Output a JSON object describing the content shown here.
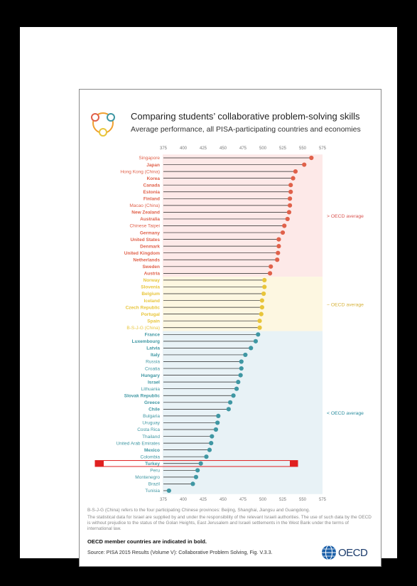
{
  "header": {
    "title": "Comparing students’ collaborative problem-solving skills",
    "subtitle": "Average performance, all PISA-participating countries and economies"
  },
  "bands": [
    {
      "label": "> OECD average",
      "color": "#fde9e8",
      "text_color": "#d9534f"
    },
    {
      "label": "~ OECD average",
      "color": "#fdf7e1",
      "text_color": "#d6b23a"
    },
    {
      "label": "< OECD average",
      "color": "#e8f2f6",
      "text_color": "#2a8c9e"
    }
  ],
  "colors": {
    "above": "#e0614a",
    "similar": "#e8c53a",
    "below": "#3f97a3",
    "highlight": "#e02020"
  },
  "chart_data": {
    "type": "lollipop",
    "xlim": [
      375,
      575
    ],
    "x_ticks": [
      "375",
      "400",
      "425",
      "450",
      "475",
      "500",
      "525",
      "550",
      "575"
    ],
    "grid": false,
    "highlight": "Turkey",
    "series": [
      {
        "country": "Singapore",
        "value": 561,
        "group": "above",
        "bold": false
      },
      {
        "country": "Japan",
        "value": 552,
        "group": "above",
        "bold": true
      },
      {
        "country": "Hong Kong (China)",
        "value": 541,
        "group": "above",
        "bold": false
      },
      {
        "country": "Korea",
        "value": 538,
        "group": "above",
        "bold": true
      },
      {
        "country": "Canada",
        "value": 535,
        "group": "above",
        "bold": true
      },
      {
        "country": "Estonia",
        "value": 535,
        "group": "above",
        "bold": true
      },
      {
        "country": "Finland",
        "value": 534,
        "group": "above",
        "bold": true
      },
      {
        "country": "Macao (China)",
        "value": 534,
        "group": "above",
        "bold": false
      },
      {
        "country": "New Zealand",
        "value": 533,
        "group": "above",
        "bold": true
      },
      {
        "country": "Australia",
        "value": 531,
        "group": "above",
        "bold": true
      },
      {
        "country": "Chinese Taipei",
        "value": 527,
        "group": "above",
        "bold": false
      },
      {
        "country": "Germany",
        "value": 525,
        "group": "above",
        "bold": true
      },
      {
        "country": "United States",
        "value": 520,
        "group": "above",
        "bold": true
      },
      {
        "country": "Denmark",
        "value": 520,
        "group": "above",
        "bold": true
      },
      {
        "country": "United Kingdom",
        "value": 519,
        "group": "above",
        "bold": true
      },
      {
        "country": "Netherlands",
        "value": 518,
        "group": "above",
        "bold": true
      },
      {
        "country": "Sweden",
        "value": 510,
        "group": "above",
        "bold": true
      },
      {
        "country": "Austria",
        "value": 509,
        "group": "above",
        "bold": true
      },
      {
        "country": "Norway",
        "value": 502,
        "group": "similar",
        "bold": true
      },
      {
        "country": "Slovenia",
        "value": 502,
        "group": "similar",
        "bold": true
      },
      {
        "country": "Belgium",
        "value": 501,
        "group": "similar",
        "bold": true
      },
      {
        "country": "Iceland",
        "value": 499,
        "group": "similar",
        "bold": true
      },
      {
        "country": "Czech Republic",
        "value": 499,
        "group": "similar",
        "bold": true
      },
      {
        "country": "Portugal",
        "value": 498,
        "group": "similar",
        "bold": true
      },
      {
        "country": "Spain",
        "value": 496,
        "group": "similar",
        "bold": true
      },
      {
        "country": "B-S-J-G (China)",
        "value": 496,
        "group": "similar",
        "bold": false
      },
      {
        "country": "France",
        "value": 494,
        "group": "below",
        "bold": true
      },
      {
        "country": "Luxembourg",
        "value": 491,
        "group": "below",
        "bold": true
      },
      {
        "country": "Latvia",
        "value": 485,
        "group": "below",
        "bold": true
      },
      {
        "country": "Italy",
        "value": 478,
        "group": "below",
        "bold": true
      },
      {
        "country": "Russia",
        "value": 473,
        "group": "below",
        "bold": false
      },
      {
        "country": "Croatia",
        "value": 473,
        "group": "below",
        "bold": false
      },
      {
        "country": "Hungary",
        "value": 472,
        "group": "below",
        "bold": true
      },
      {
        "country": "Israel",
        "value": 469,
        "group": "below",
        "bold": true
      },
      {
        "country": "Lithuania",
        "value": 467,
        "group": "below",
        "bold": false
      },
      {
        "country": "Slovak Republic",
        "value": 463,
        "group": "below",
        "bold": true
      },
      {
        "country": "Greece",
        "value": 459,
        "group": "below",
        "bold": true
      },
      {
        "country": "Chile",
        "value": 457,
        "group": "below",
        "bold": true
      },
      {
        "country": "Bulgaria",
        "value": 444,
        "group": "below",
        "bold": false
      },
      {
        "country": "Uruguay",
        "value": 443,
        "group": "below",
        "bold": false
      },
      {
        "country": "Costa Rica",
        "value": 441,
        "group": "below",
        "bold": false
      },
      {
        "country": "Thailand",
        "value": 436,
        "group": "below",
        "bold": false
      },
      {
        "country": "United Arab Emirates",
        "value": 435,
        "group": "below",
        "bold": false
      },
      {
        "country": "Mexico",
        "value": 433,
        "group": "below",
        "bold": true
      },
      {
        "country": "Colombia",
        "value": 429,
        "group": "below",
        "bold": false
      },
      {
        "country": "Turkey",
        "value": 422,
        "group": "below",
        "bold": true
      },
      {
        "country": "Peru",
        "value": 418,
        "group": "below",
        "bold": false
      },
      {
        "country": "Montenegro",
        "value": 416,
        "group": "below",
        "bold": false
      },
      {
        "country": "Brazil",
        "value": 412,
        "group": "below",
        "bold": false
      },
      {
        "country": "Tunisia",
        "value": 382,
        "group": "below",
        "bold": false
      }
    ]
  },
  "footer": {
    "note1": "B-S-J-G (China) refers to the four participating Chinese provinces: Beijing, Shanghai, Jiangsu and Guangdong.",
    "note2": "The statistical data for Israel are supplied by and under the responsibility of the relevant Israeli authorities. The use of such data by the OECD is without prejudice to the status of the Golan Heights, East Jerusalem and Israeli settlements in the West Bank under the terms of international law.",
    "bold_note": "OECD member countries are indicated in bold.",
    "source": "Source: PISA 2015 Results (Volume V): Collaborative Problem Solving, Fig. V.3.3.",
    "logo_text": "OECD"
  }
}
